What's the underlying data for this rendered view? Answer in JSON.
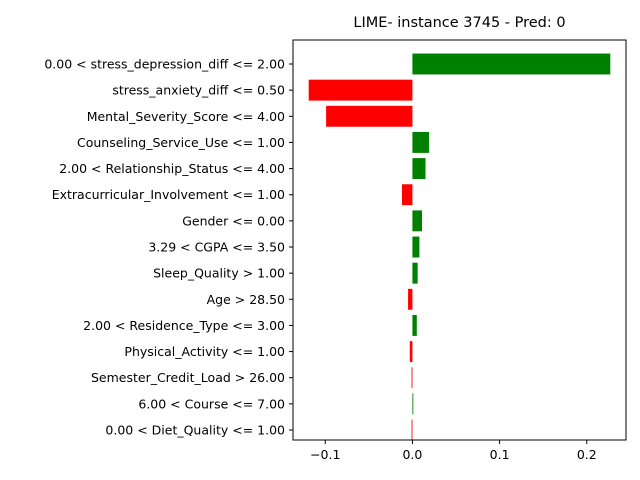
{
  "chart_data": {
    "type": "bar",
    "orientation": "horizontal",
    "title": "LIME- instance 3745 - Pred: 0",
    "xlabel": "",
    "ylabel": "",
    "xlim": [
      -0.137,
      0.245
    ],
    "xticks": [
      -0.1,
      0.0,
      0.1,
      0.2
    ],
    "xtick_labels": [
      "−0.1",
      "0.0",
      "0.1",
      "0.2"
    ],
    "grid": false,
    "colors": {
      "positive": "#008000",
      "negative": "#ff0000"
    },
    "categories": [
      "0.00 < stress_depression_diff <= 2.00",
      "stress_anxiety_diff <= 0.50",
      "Mental_Severity_Score <= 4.00",
      "Counseling_Service_Use <= 1.00",
      "2.00 < Relationship_Status <= 4.00",
      "Extracurricular_Involvement <= 1.00",
      "Gender <= 0.00",
      "3.29 < CGPA <= 3.50",
      "Sleep_Quality > 1.00",
      "Age > 28.50",
      "2.00 < Residence_Type <= 3.00",
      "Physical_Activity <= 1.00",
      "Semester_Credit_Load > 26.00",
      "6.00 < Course <= 7.00",
      "0.00 < Diet_Quality <= 1.00"
    ],
    "values": [
      0.227,
      -0.119,
      -0.099,
      0.019,
      0.015,
      -0.012,
      0.011,
      0.008,
      0.006,
      -0.005,
      0.005,
      -0.003,
      -0.001,
      0.001,
      -0.001
    ]
  }
}
